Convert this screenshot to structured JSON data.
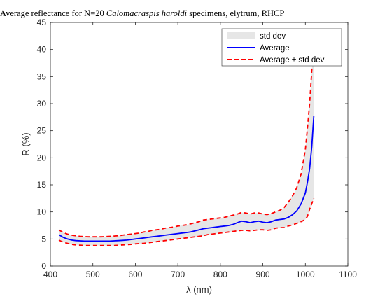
{
  "chart_data": {
    "type": "line",
    "title": {
      "prefix": "Average reflectance for N=20 ",
      "species": "Calomacraspis haroldi",
      "suffix": " specimens, elytrum, RHCP"
    },
    "xlabel_symbol": "λ",
    "xlabel_unit": " (nm)",
    "ylabel": "R (%)",
    "xlim": [
      400,
      1100
    ],
    "ylim": [
      0,
      45
    ],
    "xticks": [
      400,
      500,
      600,
      700,
      800,
      900,
      1000,
      1100
    ],
    "yticks": [
      0,
      5,
      10,
      15,
      20,
      25,
      30,
      35,
      40,
      45
    ],
    "grid": false,
    "legend_position": "top-right",
    "legend": [
      "std dev",
      "Average",
      "Average ± std dev"
    ],
    "colors": {
      "average": "#0000ff",
      "std_line": "#ff0000",
      "std_fill": "#e6e6e6",
      "axis": "#262626"
    },
    "x": [
      420,
      430,
      440,
      450,
      460,
      470,
      480,
      490,
      500,
      510,
      520,
      530,
      540,
      550,
      560,
      570,
      580,
      590,
      600,
      610,
      620,
      630,
      640,
      650,
      660,
      670,
      680,
      690,
      700,
      710,
      720,
      730,
      740,
      750,
      760,
      770,
      780,
      790,
      800,
      810,
      820,
      830,
      840,
      850,
      860,
      870,
      880,
      890,
      900,
      910,
      920,
      930,
      940,
      950,
      960,
      970,
      980,
      990,
      1000,
      1005,
      1010,
      1015,
      1020
    ],
    "average": [
      5.8,
      5.3,
      5.0,
      4.8,
      4.7,
      4.65,
      4.6,
      4.6,
      4.6,
      4.6,
      4.6,
      4.6,
      4.6,
      4.65,
      4.7,
      4.75,
      4.8,
      4.9,
      5.0,
      5.1,
      5.2,
      5.3,
      5.4,
      5.5,
      5.6,
      5.7,
      5.8,
      5.9,
      6.0,
      6.1,
      6.2,
      6.3,
      6.5,
      6.7,
      6.9,
      7.0,
      7.1,
      7.2,
      7.3,
      7.4,
      7.5,
      7.7,
      8.0,
      8.3,
      8.2,
      8.0,
      8.2,
      8.3,
      8.1,
      8.0,
      8.2,
      8.5,
      8.6,
      8.7,
      9.0,
      9.5,
      10.2,
      11.5,
      13.5,
      15.5,
      18.0,
      22.0,
      27.8
    ],
    "upper": [
      6.7,
      6.2,
      5.9,
      5.7,
      5.6,
      5.5,
      5.45,
      5.4,
      5.4,
      5.4,
      5.4,
      5.45,
      5.5,
      5.55,
      5.6,
      5.7,
      5.8,
      5.9,
      6.0,
      6.1,
      6.3,
      6.4,
      6.6,
      6.7,
      6.8,
      7.0,
      7.1,
      7.2,
      7.4,
      7.5,
      7.6,
      7.8,
      8.0,
      8.2,
      8.5,
      8.6,
      8.7,
      8.8,
      8.9,
      9.0,
      9.2,
      9.4,
      9.6,
      9.9,
      9.8,
      9.6,
      9.8,
      9.8,
      9.6,
      9.5,
      9.7,
      10.0,
      10.3,
      10.8,
      11.8,
      13.0,
      14.5,
      17.0,
      21.5,
      25.5,
      30.0,
      36.0,
      41.0
    ],
    "lower": [
      4.8,
      4.4,
      4.2,
      4.0,
      3.9,
      3.85,
      3.8,
      3.8,
      3.8,
      3.8,
      3.8,
      3.8,
      3.8,
      3.8,
      3.85,
      3.9,
      3.95,
      4.0,
      4.1,
      4.15,
      4.2,
      4.3,
      4.4,
      4.5,
      4.6,
      4.7,
      4.8,
      4.9,
      5.0,
      5.1,
      5.2,
      5.3,
      5.4,
      5.5,
      5.6,
      5.8,
      5.9,
      6.0,
      6.1,
      6.2,
      6.3,
      6.4,
      6.5,
      6.6,
      6.6,
      6.5,
      6.6,
      6.7,
      6.7,
      6.6,
      6.7,
      7.0,
      7.1,
      7.1,
      7.4,
      7.6,
      7.9,
      8.2,
      8.6,
      9.2,
      10.5,
      11.5,
      12.5
    ]
  }
}
